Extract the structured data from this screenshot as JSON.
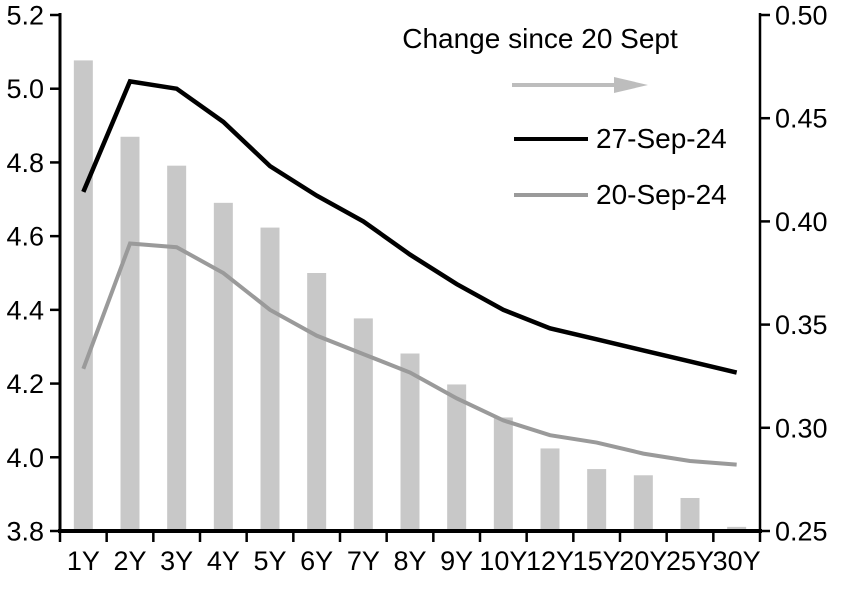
{
  "chart_data": {
    "type": "combo-bar-line",
    "title": "",
    "categories": [
      "1Y",
      "2Y",
      "3Y",
      "4Y",
      "5Y",
      "6Y",
      "7Y",
      "8Y",
      "9Y",
      "10Y",
      "12Y",
      "15Y",
      "20Y",
      "25Y",
      "30Y"
    ],
    "series": [
      {
        "name": "Change since 20 Sept",
        "type": "bar",
        "axis": "right",
        "color": "#C8C8C8",
        "values": [
          0.478,
          0.441,
          0.427,
          0.409,
          0.397,
          0.375,
          0.353,
          0.336,
          0.321,
          0.305,
          0.29,
          0.28,
          0.277,
          0.266,
          0.252
        ]
      },
      {
        "name": "27-Sep-24",
        "type": "line",
        "axis": "left",
        "color": "#000000",
        "values": [
          4.72,
          5.02,
          5.0,
          4.91,
          4.79,
          4.71,
          4.64,
          4.55,
          4.47,
          4.4,
          4.35,
          4.32,
          4.29,
          4.26,
          4.23
        ]
      },
      {
        "name": "20-Sep-24",
        "type": "line",
        "axis": "left",
        "color": "#9A9A9A",
        "values": [
          4.24,
          4.58,
          4.57,
          4.5,
          4.4,
          4.33,
          4.28,
          4.23,
          4.16,
          4.1,
          4.06,
          4.04,
          4.01,
          3.99,
          3.98
        ]
      }
    ],
    "left_axis": {
      "min": 3.8,
      "max": 5.2,
      "step": 0.2,
      "tick_labels": [
        "5.2",
        "5.0",
        "4.8",
        "4.6",
        "4.4",
        "4.2",
        "4.0",
        "3.8"
      ]
    },
    "right_axis": {
      "min": 0.25,
      "max": 0.5,
      "step": 0.05,
      "tick_labels": [
        "0.50",
        "0.45",
        "0.40",
        "0.35",
        "0.30",
        "0.25"
      ]
    },
    "legend": {
      "arrow_color": "#BDBDBD",
      "position": "top-center-inside"
    },
    "grid": "off"
  }
}
